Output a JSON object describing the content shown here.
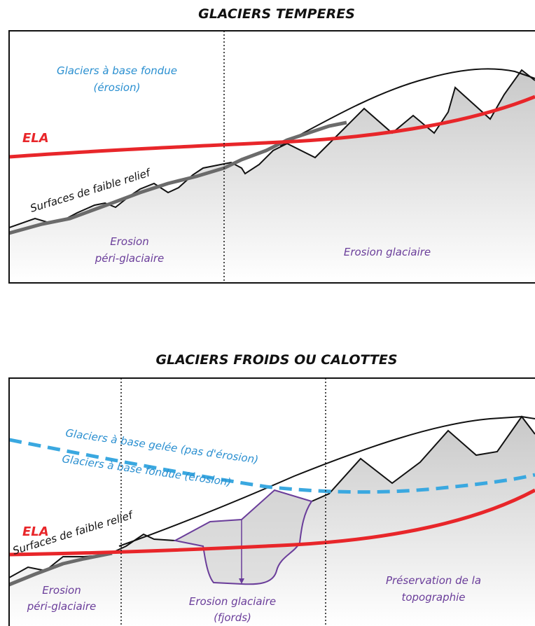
{
  "top": {
    "title": "GLACIERS TEMPERES",
    "label_wet_base_1": "Glaciers à base fondue",
    "label_wet_base_2": "(érosion)",
    "label_ela": "ELA",
    "label_low_relief": "Surfaces de faible relief",
    "label_periglacial_1": "Erosion",
    "label_periglacial_2": "péri-glaciaire",
    "label_glacial": "Erosion glaciaire"
  },
  "bottom": {
    "title": "GLACIERS FROIDS OU CALOTTES",
    "label_cold_base": "Glaciers à base gelée (pas d'érosion)",
    "label_wet_base": "Glaciers à base fondue (érosion)",
    "label_ela": "ELA",
    "label_low_relief": "Surfaces de faible relief",
    "label_periglacial_1": "Erosion",
    "label_periglacial_2": "péri-glaciaire",
    "label_glacial_1": "Erosion glaciaire",
    "label_glacial_2": "(fjords)",
    "label_preservation_1": "Préservation de la",
    "label_preservation_2": "topographie"
  },
  "colors": {
    "ela": "#e8262a",
    "cold_base_line": "#3aa8e0",
    "low_relief_line": "#6b6b6b",
    "erosion_text": "#6a3d9a",
    "glacier_text": "#2a8fd0",
    "terrain_fill": "#d9d9d9"
  }
}
